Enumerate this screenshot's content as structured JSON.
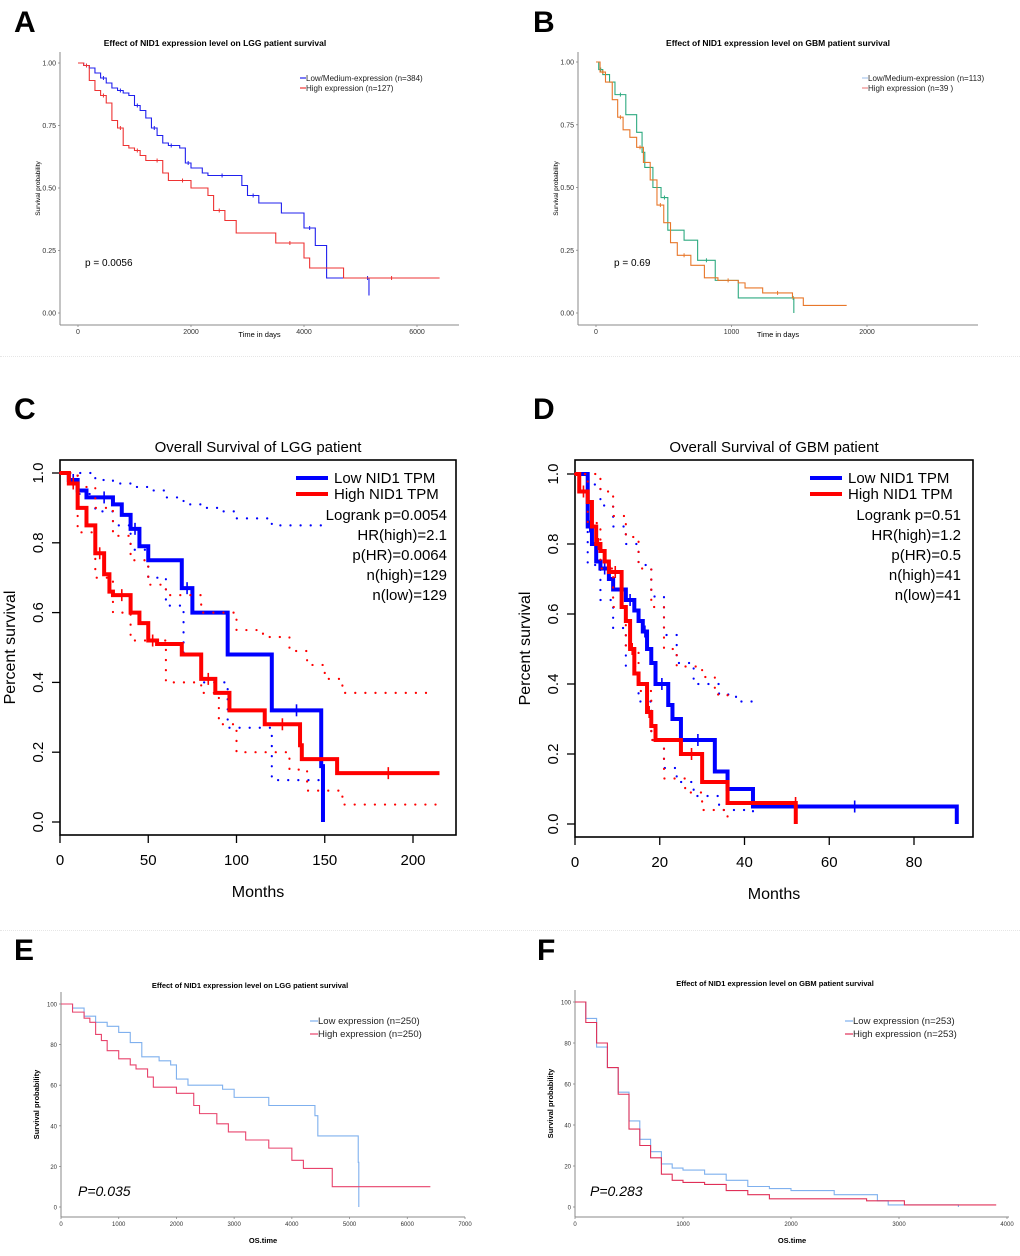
{
  "chart_data": [
    {
      "id": "A",
      "panel_label": "A",
      "type": "line",
      "style": "km-ggplot",
      "title": "Effect of NID1 expression level on LGG patient survival",
      "xlabel": "Time in days",
      "ylabel": "Survival probability",
      "xlim": [
        0,
        7000
      ],
      "ylim": [
        0,
        1
      ],
      "xticks": [
        0,
        2000,
        4000,
        6000
      ],
      "yticks": [
        0,
        0.25,
        0.5,
        0.75,
        1.0
      ],
      "ytick_labels": [
        "0.00",
        "0.25",
        "0.50",
        "0.75",
        "1.00"
      ],
      "annotation": "p = 0.0056",
      "legend_position": "top-right",
      "series": [
        {
          "name": "Low/Medium-expression (n=384)",
          "color": "#2020ee",
          "x": [
            0,
            100,
            200,
            300,
            400,
            500,
            600,
            700,
            800,
            900,
            1000,
            1100,
            1200,
            1300,
            1400,
            1500,
            1600,
            1700,
            1800,
            1900,
            2000,
            2200,
            2300,
            2800,
            2900,
            3000,
            3200,
            3600,
            4000,
            4200,
            4400,
            5100,
            5150
          ],
          "y": [
            1.0,
            0.99,
            0.98,
            0.96,
            0.94,
            0.92,
            0.9,
            0.89,
            0.88,
            0.87,
            0.83,
            0.81,
            0.78,
            0.74,
            0.71,
            0.68,
            0.67,
            0.67,
            0.66,
            0.6,
            0.58,
            0.56,
            0.55,
            0.55,
            0.51,
            0.47,
            0.44,
            0.4,
            0.34,
            0.27,
            0.14,
            0.14,
            0.07
          ]
        },
        {
          "name": "High expression (n=127)",
          "color": "#ee3333",
          "x": [
            0,
            100,
            200,
            300,
            400,
            500,
            600,
            700,
            800,
            900,
            1000,
            1100,
            1200,
            1300,
            1500,
            1600,
            1700,
            2000,
            2300,
            2400,
            2600,
            2800,
            3500,
            4000,
            4100,
            4700,
            6400
          ],
          "y": [
            1.0,
            0.99,
            0.93,
            0.89,
            0.87,
            0.84,
            0.77,
            0.74,
            0.67,
            0.66,
            0.65,
            0.63,
            0.61,
            0.61,
            0.56,
            0.53,
            0.53,
            0.5,
            0.47,
            0.41,
            0.37,
            0.32,
            0.28,
            0.22,
            0.18,
            0.14,
            0.14
          ]
        }
      ]
    },
    {
      "id": "B",
      "panel_label": "B",
      "type": "line",
      "style": "km-ggplot",
      "title": "Effect of NID1 expression level on GBM patient survival",
      "xlabel": "Time in days",
      "ylabel": "Survival probability",
      "xlim": [
        0,
        2800
      ],
      "ylim": [
        0,
        1
      ],
      "xticks": [
        0,
        1000,
        2000
      ],
      "yticks": [
        0,
        0.25,
        0.5,
        0.75,
        1.0
      ],
      "ytick_labels": [
        "0.00",
        "0.25",
        "0.50",
        "0.75",
        "1.00"
      ],
      "annotation": "p = 0.69",
      "legend_position": "top-right",
      "legend_swatch_colors": [
        "#aac8ee",
        "#ee8888"
      ],
      "series": [
        {
          "name": "Low/Medium-expression (n=113)",
          "color": "#2eaa80",
          "x": [
            0,
            20,
            50,
            100,
            140,
            220,
            300,
            340,
            360,
            420,
            480,
            530,
            650,
            750,
            880,
            1050,
            1450,
            1460
          ],
          "y": [
            1.0,
            0.97,
            0.95,
            0.92,
            0.87,
            0.79,
            0.72,
            0.64,
            0.58,
            0.5,
            0.46,
            0.33,
            0.29,
            0.21,
            0.13,
            0.06,
            0.06,
            0.0
          ]
        },
        {
          "name": "High expression (n=39 )",
          "color": "#e8772a",
          "x": [
            0,
            30,
            70,
            120,
            160,
            200,
            250,
            300,
            350,
            400,
            450,
            500,
            550,
            600,
            700,
            800,
            900,
            1050,
            1100,
            1230,
            1450,
            1530,
            1850
          ],
          "y": [
            1.0,
            0.96,
            0.92,
            0.85,
            0.78,
            0.73,
            0.7,
            0.66,
            0.6,
            0.53,
            0.43,
            0.36,
            0.28,
            0.23,
            0.19,
            0.14,
            0.13,
            0.12,
            0.1,
            0.08,
            0.06,
            0.03,
            0.03
          ]
        }
      ]
    },
    {
      "id": "C",
      "panel_label": "C",
      "type": "line",
      "style": "km-gepia",
      "title": "Overall Survival of LGG patient",
      "xlabel": "Months",
      "ylabel": "Percent survival",
      "xlim": [
        0,
        220
      ],
      "ylim": [
        0,
        1
      ],
      "xticks": [
        0,
        50,
        100,
        150,
        200
      ],
      "yticks": [
        0,
        0.2,
        0.4,
        0.6,
        0.8,
        1.0
      ],
      "ytick_labels": [
        "0.0",
        "0.2",
        "0.4",
        "0.6",
        "0.8",
        "1.0"
      ],
      "legend_position": "top-right",
      "stats": [
        "Logrank p=0.0054",
        "HR(high)=2.1",
        "p(HR)=0.0064",
        "n(high)=129",
        "n(low)=129"
      ],
      "series": [
        {
          "name": "Low NID1 TPM",
          "color": "#0000ff",
          "x": [
            0,
            5,
            10,
            15,
            20,
            30,
            35,
            40,
            45,
            50,
            69,
            75,
            95,
            120,
            148,
            149
          ],
          "y": [
            1.0,
            0.98,
            0.95,
            0.93,
            0.93,
            0.91,
            0.88,
            0.84,
            0.79,
            0.75,
            0.67,
            0.6,
            0.48,
            0.32,
            0.16,
            0.0
          ],
          "ci_upper": [
            1.0,
            1.0,
            0.98,
            0.97,
            0.96,
            0.95,
            0.93,
            0.91,
            0.9,
            0.89,
            0.87,
            0.85,
            0.85,
            0.85
          ],
          "ci_upper_x": [
            0,
            10,
            20,
            30,
            40,
            50,
            60,
            70,
            80,
            90,
            100,
            120,
            140,
            150
          ],
          "ci_lower": [
            1.0,
            0.94,
            0.89,
            0.85,
            0.78,
            0.7,
            0.62,
            0.48,
            0.4,
            0.27,
            0.27,
            0.12,
            0.12
          ],
          "ci_lower_x": [
            0,
            10,
            20,
            30,
            40,
            50,
            60,
            70,
            80,
            95,
            115,
            120,
            150
          ]
        },
        {
          "name": "High NID1 TPM",
          "color": "#ff0000",
          "x": [
            0,
            5,
            10,
            15,
            20,
            25,
            28,
            30,
            40,
            45,
            50,
            55,
            69,
            80,
            88,
            96,
            116,
            136,
            137,
            157,
            215
          ],
          "y": [
            1.0,
            0.97,
            0.9,
            0.85,
            0.77,
            0.71,
            0.66,
            0.65,
            0.6,
            0.57,
            0.52,
            0.51,
            0.48,
            0.41,
            0.37,
            0.32,
            0.28,
            0.22,
            0.18,
            0.14,
            0.14
          ],
          "ci_upper": [
            1.0,
            0.96,
            0.9,
            0.82,
            0.75,
            0.68,
            0.65,
            0.6,
            0.55,
            0.53,
            0.49,
            0.45,
            0.41,
            0.37,
            0.37
          ],
          "ci_upper_x": [
            0,
            10,
            20,
            30,
            40,
            50,
            60,
            80,
            100,
            115,
            130,
            140,
            150,
            160,
            212
          ],
          "ci_lower": [
            1.0,
            0.83,
            0.7,
            0.6,
            0.52,
            0.4,
            0.37,
            0.28,
            0.2,
            0.15,
            0.09,
            0.05,
            0.05
          ],
          "ci_lower_x": [
            0,
            10,
            20,
            30,
            40,
            60,
            80,
            90,
            100,
            130,
            140,
            160,
            213
          ]
        }
      ]
    },
    {
      "id": "D",
      "panel_label": "D",
      "type": "line",
      "style": "km-gepia",
      "title": "Overall Survival of GBM patient",
      "xlabel": "Months",
      "ylabel": "Percent survival",
      "xlim": [
        0,
        94
      ],
      "ylim": [
        0,
        1
      ],
      "xticks": [
        0,
        20,
        40,
        60,
        80
      ],
      "yticks": [
        0,
        0.2,
        0.4,
        0.6,
        0.8,
        1.0
      ],
      "ytick_labels": [
        "0.0",
        "0.2",
        "0.4",
        "0.6",
        "0.8",
        "1.0"
      ],
      "legend_position": "top-right",
      "stats": [
        "Logrank p=0.51",
        "HR(high)=1.2",
        "p(HR)=0.5",
        "n(high)=41",
        "n(low)=41"
      ],
      "series": [
        {
          "name": "Low NID1 TPM",
          "color": "#0000ff",
          "x": [
            0,
            3,
            4,
            5,
            6,
            8,
            9,
            12,
            14,
            15,
            16,
            17,
            18,
            19,
            22,
            23,
            25,
            33,
            36,
            42,
            90,
            90.1
          ],
          "y": [
            1.0,
            0.85,
            0.8,
            0.75,
            0.73,
            0.7,
            0.67,
            0.64,
            0.61,
            0.58,
            0.55,
            0.5,
            0.46,
            0.4,
            0.34,
            0.3,
            0.24,
            0.15,
            0.1,
            0.05,
            0.05,
            0.0
          ],
          "ci_upper": [
            1.0,
            0.97,
            0.91,
            0.85,
            0.8,
            0.74,
            0.65,
            0.54,
            0.46,
            0.4,
            0.37,
            0.35,
            0.33
          ],
          "ci_upper_x": [
            0,
            3,
            6,
            9,
            12,
            15,
            18,
            21,
            24,
            28,
            34,
            38,
            42
          ],
          "ci_lower": [
            1.0,
            0.74,
            0.64,
            0.56,
            0.45,
            0.35,
            0.24,
            0.16,
            0.12,
            0.08,
            0.04,
            0.03
          ],
          "ci_lower_x": [
            0,
            3,
            6,
            9,
            12,
            15,
            18,
            21,
            24,
            28,
            34,
            42
          ]
        },
        {
          "name": "High NID1 TPM",
          "color": "#ff0000",
          "x": [
            0,
            1,
            3,
            4,
            5,
            6,
            7,
            8,
            11,
            12,
            13,
            14,
            15,
            17,
            18,
            19,
            25,
            30,
            36,
            52,
            52.1
          ],
          "y": [
            1.0,
            0.95,
            0.92,
            0.85,
            0.8,
            0.78,
            0.75,
            0.72,
            0.62,
            0.58,
            0.5,
            0.43,
            0.4,
            0.32,
            0.28,
            0.24,
            0.2,
            0.12,
            0.06,
            0.06,
            0.0
          ],
          "ci_upper": [
            1.0,
            1.0,
            0.95,
            0.88,
            0.82,
            0.73,
            0.62,
            0.5,
            0.45,
            0.42,
            0.37,
            0.35
          ],
          "ci_upper_x": [
            0,
            3,
            6,
            9,
            12,
            15,
            18,
            21,
            24,
            30,
            33,
            36
          ],
          "ci_lower": [
            1.0,
            0.86,
            0.73,
            0.62,
            0.5,
            0.38,
            0.24,
            0.13,
            0.09,
            0.04,
            0.02
          ],
          "ci_lower_x": [
            0,
            3,
            6,
            9,
            12,
            15,
            18,
            21,
            26,
            30,
            36
          ]
        }
      ]
    },
    {
      "id": "E",
      "panel_label": "E",
      "type": "line",
      "style": "km-spss",
      "title": "Effect of NID1 expression level on LGG patient survival",
      "xlabel": "OS.time",
      "ylabel": "Survival probability",
      "xlim": [
        0,
        7000
      ],
      "ylim": [
        0,
        100
      ],
      "xticks": [
        0,
        1000,
        2000,
        3000,
        4000,
        5000,
        6000,
        7000
      ],
      "yticks": [
        0,
        20,
        40,
        60,
        80,
        100
      ],
      "ytick_labels": [
        "0",
        "20",
        "40",
        "60",
        "80",
        "100"
      ],
      "annotation": "P=0.035",
      "legend_position": "top-right",
      "series": [
        {
          "name": "Low expression (n=250)",
          "color": "#7fb0ee",
          "x": [
            0,
            200,
            400,
            600,
            800,
            1000,
            1200,
            1400,
            1700,
            1900,
            2000,
            2200,
            2800,
            3000,
            3600,
            4400,
            4450,
            5150,
            5160
          ],
          "y": [
            100,
            98,
            94,
            91,
            89,
            86,
            81,
            74,
            72,
            70,
            63,
            60,
            58,
            54,
            50,
            45,
            35,
            22,
            0
          ]
        },
        {
          "name": "High expression (n=250)",
          "color": "#e8436c",
          "x": [
            0,
            200,
            400,
            500,
            600,
            700,
            800,
            1000,
            1200,
            1300,
            1500,
            1600,
            2000,
            2300,
            2400,
            2700,
            2900,
            3200,
            3600,
            4000,
            4200,
            4700,
            6400
          ],
          "y": [
            100,
            96,
            93,
            91,
            85,
            82,
            77,
            73,
            70,
            68,
            64,
            59,
            56,
            50,
            46,
            41,
            37,
            33,
            29,
            23,
            19,
            10,
            10
          ]
        }
      ]
    },
    {
      "id": "F",
      "panel_label": "F",
      "type": "line",
      "style": "km-spss",
      "title": "Effect of NID1 expression level on GBM patient survival",
      "xlabel": "OS.time",
      "ylabel": "Survival probability",
      "xlim": [
        0,
        4000
      ],
      "ylim": [
        0,
        100
      ],
      "xticks": [
        0,
        1000,
        2000,
        3000,
        4000
      ],
      "yticks": [
        0,
        20,
        40,
        60,
        80,
        100
      ],
      "ytick_labels": [
        "0",
        "20",
        "40",
        "60",
        "80",
        "100"
      ],
      "annotation": "P=0.283",
      "legend_position": "top-right",
      "series": [
        {
          "name": "Low expression (n=253)",
          "color": "#7fb0ee",
          "x": [
            0,
            100,
            200,
            300,
            400,
            500,
            600,
            700,
            800,
            900,
            1000,
            1200,
            1400,
            1600,
            1800,
            2000,
            2400,
            2800,
            2900,
            3500,
            3550
          ],
          "y": [
            100,
            92,
            78,
            68,
            56,
            42,
            33,
            27,
            21,
            19,
            18,
            16,
            13,
            10,
            9,
            8,
            6,
            3,
            1,
            1,
            0
          ]
        },
        {
          "name": "High expression (n=253)",
          "color": "#e03058",
          "x": [
            0,
            100,
            200,
            300,
            400,
            500,
            600,
            700,
            800,
            900,
            1000,
            1200,
            1400,
            1600,
            1800,
            2000,
            2600,
            2700,
            3050,
            3900
          ],
          "y": [
            100,
            90,
            80,
            68,
            55,
            38,
            30,
            24,
            16,
            13,
            12,
            11,
            8,
            6,
            4,
            4,
            4,
            3,
            1,
            1
          ]
        }
      ]
    }
  ]
}
